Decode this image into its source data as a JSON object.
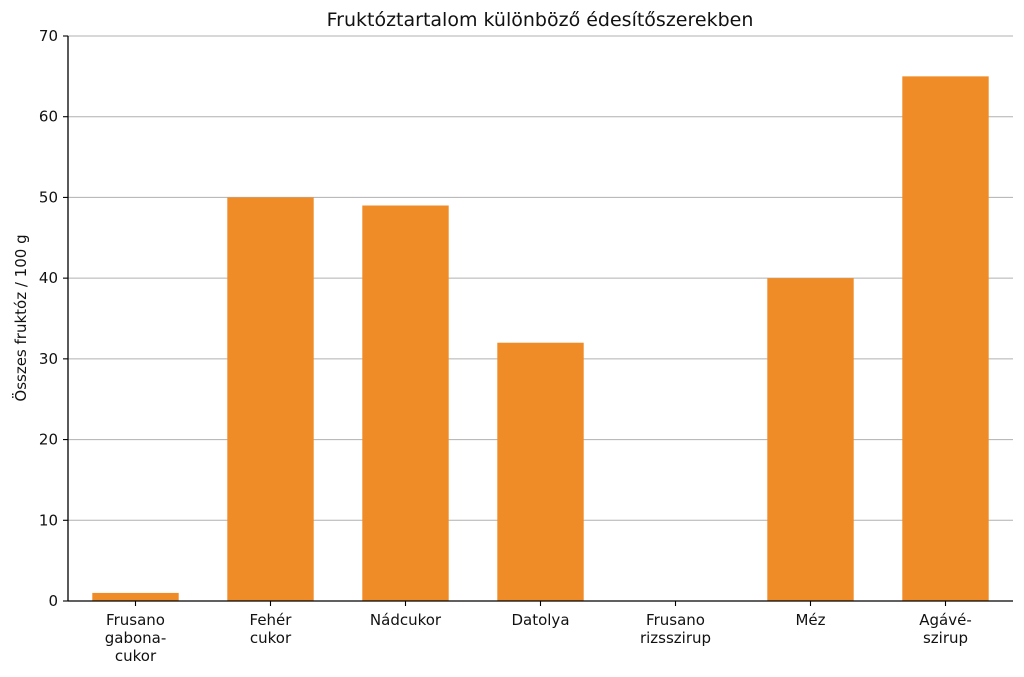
{
  "chart_data": {
    "type": "bar",
    "title": "Fruktóztartalom különböző édesítőszerekben",
    "xlabel": "",
    "ylabel": "Összes fruktóz / 100 g",
    "categories": [
      "Frusano gabona- cukor",
      "Fehér cukor",
      "Nádcukor",
      "Datolya",
      "Frusano rizsszirup",
      "Méz",
      "Agávé- szirup"
    ],
    "category_lines": [
      [
        "Frusano",
        "gabona-",
        "cukor"
      ],
      [
        "Fehér",
        "cukor"
      ],
      [
        "Nádcukor"
      ],
      [
        "Datolya"
      ],
      [
        "Frusano",
        "rizsszirup"
      ],
      [
        "Méz"
      ],
      [
        "Agávé-",
        "szirup"
      ]
    ],
    "values": [
      1,
      50,
      49,
      32,
      0,
      40,
      65
    ],
    "ylim": [
      0,
      70
    ],
    "yticks": [
      "0",
      "10",
      "20",
      "30",
      "40",
      "50",
      "60",
      "70"
    ],
    "grid": "y",
    "bar_color": "#f08c28"
  }
}
